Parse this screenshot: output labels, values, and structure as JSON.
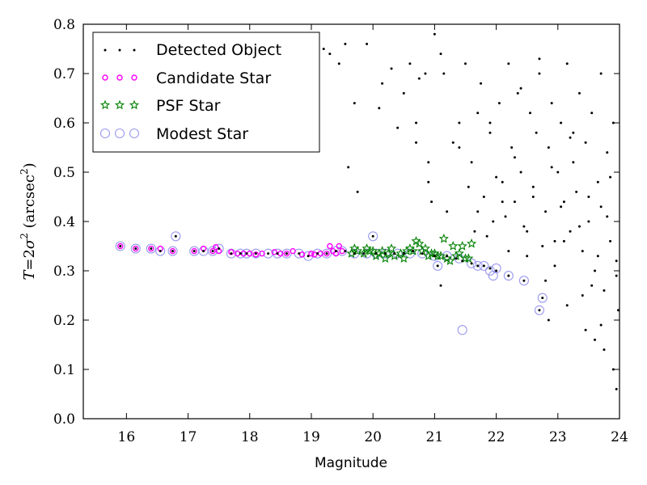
{
  "chart_data": {
    "type": "scatter",
    "xlabel": "Magnitude",
    "ylabel": "T = 2σ² (arcsec²)",
    "ylabel_parts": {
      "t": "T",
      "eq": "=",
      "two": "2",
      "sigma": "σ",
      "sup2": "2",
      "unit_open": " (arcsec",
      "unit_sup": "2",
      "unit_close": ")"
    },
    "xlim": [
      15.3,
      24.0
    ],
    "ylim": [
      0.0,
      0.8
    ],
    "xticks": [
      16,
      17,
      18,
      19,
      20,
      21,
      22,
      23,
      24
    ],
    "xtick_labels": [
      "16",
      "17",
      "18",
      "19",
      "20",
      "21",
      "22",
      "23",
      "24"
    ],
    "yticks": [
      0.0,
      0.1,
      0.2,
      0.3,
      0.4,
      0.5,
      0.6,
      0.7,
      0.8
    ],
    "ytick_labels": [
      "0.0",
      "0.1",
      "0.2",
      "0.3",
      "0.4",
      "0.5",
      "0.6",
      "0.7",
      "0.8"
    ],
    "grid": false,
    "legend_position": "top-left",
    "colors": {
      "detected": "#000000",
      "candidate": "#ff00ff",
      "psf": "#008000",
      "modest": "#9999ee"
    },
    "series": [
      {
        "name": "Detected Object",
        "marker": "dot",
        "x": [
          15.9,
          16.15,
          16.4,
          16.55,
          16.75,
          16.8,
          17.1,
          17.25,
          17.4,
          17.5,
          17.7,
          17.85,
          17.95,
          18.1,
          18.3,
          18.45,
          18.6,
          18.8,
          18.95,
          19.1,
          19.25,
          19.4,
          19.55,
          19.7,
          19.85,
          20.0,
          20.05,
          20.2,
          20.35,
          20.5,
          20.65,
          20.8,
          21.0,
          21.05,
          21.2,
          21.35,
          21.45,
          21.6,
          21.7,
          21.8,
          21.9,
          22.0,
          22.2,
          22.45,
          22.7,
          22.75,
          19.2,
          19.3,
          19.45,
          19.55,
          19.6,
          19.7,
          19.75,
          19.9,
          20.1,
          20.15,
          20.3,
          20.4,
          20.5,
          20.6,
          20.7,
          20.75,
          20.85,
          20.9,
          21.0,
          21.1,
          21.15,
          21.3,
          21.4,
          21.5,
          21.55,
          21.6,
          21.7,
          21.75,
          21.8,
          21.9,
          21.95,
          22.05,
          22.1,
          22.2,
          22.25,
          22.3,
          22.35,
          22.4,
          22.5,
          22.55,
          22.6,
          22.65,
          22.7,
          22.8,
          22.85,
          22.9,
          22.95,
          23.0,
          23.05,
          23.1,
          23.15,
          23.2,
          23.25,
          23.3,
          23.35,
          23.4,
          23.45,
          23.5,
          23.55,
          23.6,
          23.65,
          23.7,
          23.75,
          23.8,
          23.85,
          23.9,
          23.95,
          21.7,
          21.85,
          22.0,
          22.15,
          22.3,
          22.45,
          22.6,
          22.75,
          22.9,
          23.05,
          23.2,
          23.35,
          23.5,
          23.65,
          23.8,
          23.95,
          21.65,
          21.9,
          22.1,
          22.4,
          22.7,
          22.95,
          23.25,
          23.55,
          23.85,
          22.2,
          22.5,
          22.8,
          23.1,
          23.4,
          23.7,
          23.98,
          23.6,
          23.75,
          23.9,
          23.95,
          22.85,
          23.15,
          23.45,
          23.7,
          20.7,
          20.9,
          21.2,
          21.4,
          21.1,
          20.95
        ],
        "y": [
          0.35,
          0.345,
          0.345,
          0.34,
          0.34,
          0.37,
          0.34,
          0.34,
          0.34,
          0.345,
          0.335,
          0.335,
          0.335,
          0.335,
          0.335,
          0.335,
          0.335,
          0.335,
          0.33,
          0.335,
          0.335,
          0.34,
          0.34,
          0.335,
          0.335,
          0.37,
          0.335,
          0.335,
          0.335,
          0.335,
          0.34,
          0.335,
          0.33,
          0.31,
          0.33,
          0.325,
          0.32,
          0.315,
          0.31,
          0.31,
          0.305,
          0.3,
          0.29,
          0.28,
          0.22,
          0.245,
          0.75,
          0.74,
          0.72,
          0.76,
          0.51,
          0.64,
          0.46,
          0.76,
          0.63,
          0.68,
          0.71,
          0.59,
          0.66,
          0.72,
          0.6,
          0.69,
          0.7,
          0.52,
          0.78,
          0.74,
          0.7,
          0.56,
          0.6,
          0.72,
          0.47,
          0.52,
          0.62,
          0.68,
          0.45,
          0.58,
          0.4,
          0.64,
          0.48,
          0.72,
          0.55,
          0.44,
          0.66,
          0.5,
          0.38,
          0.62,
          0.45,
          0.58,
          0.7,
          0.42,
          0.55,
          0.64,
          0.36,
          0.5,
          0.6,
          0.44,
          0.72,
          0.38,
          0.52,
          0.46,
          0.66,
          0.34,
          0.56,
          0.4,
          0.62,
          0.3,
          0.48,
          0.7,
          0.26,
          0.54,
          0.36,
          0.6,
          0.32,
          0.42,
          0.37,
          0.49,
          0.41,
          0.53,
          0.39,
          0.47,
          0.35,
          0.51,
          0.43,
          0.57,
          0.39,
          0.45,
          0.33,
          0.41,
          0.29,
          0.38,
          0.6,
          0.44,
          0.67,
          0.73,
          0.31,
          0.58,
          0.27,
          0.49,
          0.34,
          0.33,
          0.28,
          0.36,
          0.25,
          0.43,
          0.22,
          0.16,
          0.14,
          0.1,
          0.06,
          0.2,
          0.23,
          0.18,
          0.19,
          0.56,
          0.48,
          0.42,
          0.55,
          0.27,
          0.44
        ]
      },
      {
        "name": "Candidate Star",
        "marker": "circle-small",
        "x": [
          15.9,
          16.15,
          16.4,
          16.55,
          16.75,
          17.1,
          17.25,
          17.4,
          17.45,
          17.5,
          17.7,
          17.8,
          17.9,
          18.0,
          18.1,
          18.2,
          18.4,
          18.5,
          18.6,
          18.7,
          18.85,
          19.0,
          19.05,
          19.15,
          19.25,
          19.3,
          19.35,
          19.4,
          19.45,
          19.5
        ],
        "y": [
          0.35,
          0.345,
          0.345,
          0.345,
          0.34,
          0.34,
          0.345,
          0.34,
          0.348,
          0.34,
          0.338,
          0.335,
          0.335,
          0.335,
          0.333,
          0.335,
          0.338,
          0.335,
          0.335,
          0.34,
          0.333,
          0.335,
          0.333,
          0.335,
          0.335,
          0.35,
          0.34,
          0.335,
          0.35,
          0.34
        ]
      },
      {
        "name": "PSF Star",
        "marker": "star",
        "x": [
          19.65,
          19.75,
          19.85,
          19.95,
          20.05,
          20.1,
          20.15,
          20.25,
          20.35,
          20.45,
          20.55,
          20.6,
          20.65,
          20.7,
          20.75,
          20.8,
          20.85,
          20.95,
          21.0,
          21.05,
          21.1,
          21.15,
          21.2,
          21.3,
          21.35,
          21.4,
          21.45,
          21.5,
          21.55,
          21.6,
          19.9,
          20.2,
          20.5,
          20.9,
          21.25,
          20.3,
          20.0,
          19.7
        ],
        "y": [
          0.335,
          0.34,
          0.335,
          0.34,
          0.33,
          0.335,
          0.34,
          0.335,
          0.33,
          0.335,
          0.34,
          0.345,
          0.34,
          0.36,
          0.355,
          0.34,
          0.345,
          0.335,
          0.335,
          0.33,
          0.33,
          0.365,
          0.325,
          0.35,
          0.33,
          0.335,
          0.35,
          0.325,
          0.325,
          0.355,
          0.345,
          0.325,
          0.325,
          0.33,
          0.32,
          0.345,
          0.34,
          0.345
        ]
      },
      {
        "name": "Modest Star",
        "marker": "circle-large",
        "x": [
          15.9,
          16.15,
          16.4,
          16.55,
          16.75,
          16.8,
          17.1,
          17.25,
          17.4,
          17.5,
          17.7,
          17.85,
          17.95,
          18.1,
          18.3,
          18.45,
          18.6,
          18.8,
          18.95,
          19.1,
          19.25,
          19.4,
          19.5,
          19.7,
          19.9,
          20.0,
          20.05,
          20.2,
          20.4,
          20.6,
          20.8,
          21.0,
          21.05,
          21.2,
          21.4,
          21.45,
          21.6,
          21.7,
          21.8,
          21.9,
          21.95,
          22.0,
          22.2,
          22.45,
          22.7,
          22.75
        ],
        "y": [
          0.35,
          0.345,
          0.345,
          0.34,
          0.34,
          0.37,
          0.34,
          0.34,
          0.34,
          0.345,
          0.335,
          0.335,
          0.335,
          0.335,
          0.335,
          0.335,
          0.335,
          0.335,
          0.33,
          0.335,
          0.335,
          0.34,
          0.34,
          0.335,
          0.335,
          0.37,
          0.335,
          0.335,
          0.335,
          0.335,
          0.335,
          0.33,
          0.31,
          0.33,
          0.325,
          0.18,
          0.315,
          0.31,
          0.31,
          0.3,
          0.29,
          0.305,
          0.29,
          0.28,
          0.22,
          0.245
        ]
      }
    ]
  }
}
